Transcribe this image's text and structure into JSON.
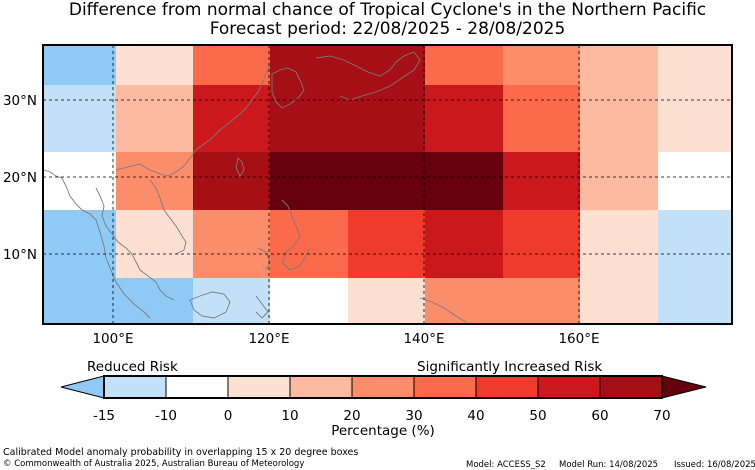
{
  "title": "Difference from normal chance of Tropical Cyclone's in the Northern Pacific",
  "subtitle": "Forecast period: 22/08/2025 - 28/08/2025",
  "x_ticks": [
    "100°E",
    "120°E",
    "140°E",
    "160°E"
  ],
  "y_ticks": [
    "30°N",
    "20°N",
    "10°N"
  ],
  "colorbar": {
    "left_label": "Reduced Risk",
    "right_label": "Significantly Increased Risk",
    "ticks": [
      "-15",
      "-10",
      "0",
      "10",
      "20",
      "30",
      "40",
      "50",
      "60",
      "70"
    ],
    "xlabel": "Percentage (%)",
    "colors": [
      "#c2e1f8",
      "#ffffff",
      "#fee0d3",
      "#fcbba1",
      "#fc8d6b",
      "#fb6a4a",
      "#ee3b2c",
      "#cb181d",
      "#a50f15"
    ],
    "under_color": "#8ecaf5",
    "over_color": "#67000d"
  },
  "footer": {
    "line1": "Calibrated Model anomaly probability in overlapping 15 x 20 degree boxes",
    "line2": "© Commonwealth of Australia 2025, Australian Bureau of Meteorology",
    "model": "Model: ACCESS_S2",
    "model_run": "Model Run: 14/08/2025",
    "issued": "Issued: 16/08/2025"
  },
  "map": {
    "lon_range": [
      91,
      180
    ],
    "lat_range": [
      1,
      37
    ],
    "cell_colors": [
      [
        "#8ecaf5",
        "#fee0d3",
        "#fb6a4a",
        "#a50f15",
        "#a50f15",
        "#fb6a4a",
        "#fc8d6b",
        "#fcbba1",
        "#fee0d3"
      ],
      [
        "#c2e1f8",
        "#fcbba1",
        "#cb181d",
        "#a50f15",
        "#a50f15",
        "#cb181d",
        "#fb6a4a",
        "#fcbba1",
        "#fee0d3"
      ],
      [
        "#ffffff",
        "#fc8d6b",
        "#a50f15",
        "#67000d",
        "#67000d",
        "#67000d",
        "#cb181d",
        "#fcbba1",
        "#ffffff"
      ],
      [
        "#8ecaf5",
        "#fee0d3",
        "#fc8d6b",
        "#fb6a4a",
        "#ee3b2c",
        "#cb181d",
        "#ee3b2c",
        "#fee0d3",
        "#c2e1f8"
      ],
      [
        "#8ecaf5",
        "#8ecaf5",
        "#c2e1f8",
        "#ffffff",
        "#fee0d3",
        "#fc8d6b",
        "#fc8d6b",
        "#fee0d3",
        "#c2e1f8"
      ]
    ]
  }
}
